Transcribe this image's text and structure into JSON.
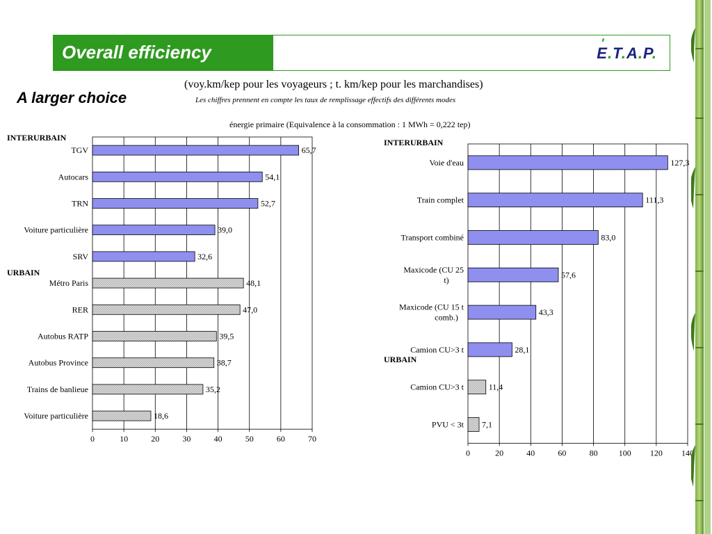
{
  "header": {
    "title": "Overall efficiency",
    "logo": {
      "letters": [
        "E",
        "T",
        "A",
        "P"
      ],
      "accent": "ʹ"
    }
  },
  "subtitle": "A larger choice",
  "notes": {
    "units": "(voy.km/kep pour les voyageurs ; t. km/kep pour les marchandises)",
    "fill_rate": "Les chiffres prennent en compte les taux de remplissage effectifs des différents modes",
    "energy": "énergie primaire (Equivalence à la consommation : 1 MWh = 0,222 tep)"
  },
  "colors": {
    "green": "#2e9a1f",
    "navy": "#1a237e",
    "bar_interurban": "#8f8fef",
    "bar_urban": "#d8d8d8"
  },
  "chart_data": [
    {
      "type": "bar",
      "orientation": "horizontal",
      "xlim": [
        0,
        70
      ],
      "ticks": [
        "0",
        "10",
        "20",
        "30",
        "40",
        "50",
        "60",
        "70"
      ],
      "groups": [
        {
          "label": "INTERURBAIN",
          "style": "interurban",
          "categories": [
            "TGV",
            "Autocars",
            "TRN",
            "Voiture particulière",
            "SRV"
          ],
          "values": [
            65.7,
            54.1,
            52.7,
            39.0,
            32.6
          ],
          "value_labels": [
            "65,7",
            "54,1",
            "52,7",
            "39,0",
            "32,6"
          ]
        },
        {
          "label": "URBAIN",
          "style": "urban",
          "categories": [
            "Métro Paris",
            "RER",
            "Autobus RATP",
            "Autobus Province",
            "Trains de banlieue",
            "Voiture particulière"
          ],
          "values": [
            48.1,
            47.0,
            39.5,
            38.7,
            35.2,
            18.6
          ],
          "value_labels": [
            "48,1",
            "47,0",
            "39,5",
            "38,7",
            "35,2",
            "18,6"
          ]
        }
      ]
    },
    {
      "type": "bar",
      "orientation": "horizontal",
      "xlim": [
        0,
        140
      ],
      "ticks": [
        "0",
        "20",
        "40",
        "60",
        "80",
        "100",
        "120",
        "140"
      ],
      "groups": [
        {
          "label": "INTERURBAIN",
          "style": "interurban",
          "categories": [
            [
              "Voie d'eau"
            ],
            [
              "Train complet"
            ],
            [
              "Transport combiné"
            ],
            [
              "Maxicode (CU 25",
              "t)"
            ],
            [
              "Maxicode (CU 15 t",
              "comb.)"
            ],
            [
              "Camion CU>3 t"
            ]
          ],
          "values": [
            127.3,
            111.3,
            83.0,
            57.6,
            43.3,
            28.1
          ],
          "value_labels": [
            "127,3",
            "111,3",
            "83,0",
            "57,6",
            "43,3",
            "28,1"
          ]
        },
        {
          "label": "URBAIN",
          "style": "urban",
          "categories": [
            [
              "Camion CU>3 t"
            ],
            [
              "PVU < 3t"
            ]
          ],
          "values": [
            11.4,
            7.1
          ],
          "value_labels": [
            "11,4",
            "7,1"
          ]
        }
      ]
    }
  ]
}
